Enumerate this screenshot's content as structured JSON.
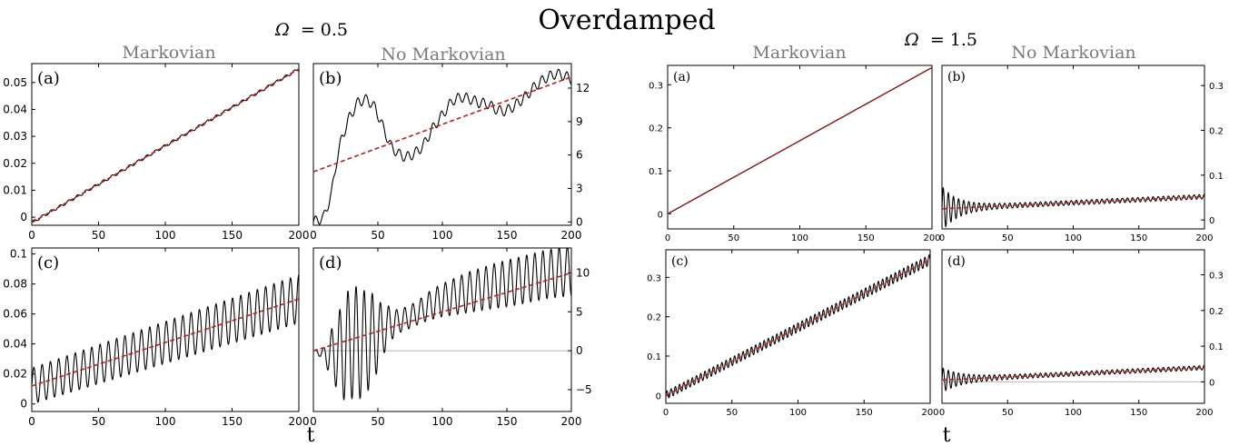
{
  "title": "Overdamped",
  "groups": [
    {
      "omega_symbol": "Ω",
      "omega_value": "= 0.5",
      "col_left": "Markovian",
      "col_right": "No Markovian"
    },
    {
      "omega_symbol": "Ω",
      "omega_value": "= 1.5",
      "col_left": "Markovian",
      "col_right": "No Markovian"
    }
  ],
  "xlabel": "t",
  "chart_data": [
    {
      "id": "omega05-a",
      "label": "(a)",
      "type": "line",
      "xlim": [
        0,
        200
      ],
      "ylim": [
        -0.003,
        0.057
      ],
      "xticks": [
        0,
        50,
        100,
        150,
        200
      ],
      "yticks": [
        0,
        0.01,
        0.02,
        0.03,
        0.04,
        0.05
      ],
      "ytick_labels": [
        "0",
        "0.01",
        "0.02",
        "0.03",
        "0.04",
        "0.05"
      ],
      "yaxis": "left",
      "fit": {
        "color": "#b22222",
        "y0": -0.002,
        "y1": 0.055
      },
      "series": [
        {
          "y0": -0.002,
          "y1": 0.055,
          "amp": 0.0005,
          "period": 6.5
        }
      ]
    },
    {
      "id": "omega05-b",
      "label": "(b)",
      "type": "line",
      "xlim": [
        0,
        200
      ],
      "ylim": [
        -0.3,
        14.2
      ],
      "xticks": [
        0,
        50,
        100,
        150,
        200
      ],
      "yticks": [
        0,
        3,
        6,
        9,
        12
      ],
      "ytick_labels": [
        "0",
        "3",
        "6",
        "9",
        "12"
      ],
      "yaxis": "right",
      "fit": {
        "color": "#b22222",
        "y0": 4.5,
        "y1": 13
      },
      "series": [
        {
          "points": [
            [
              0,
              0
            ],
            [
              8,
              0.4
            ],
            [
              14,
              2.5
            ],
            [
              18,
              5.5
            ],
            [
              22,
              7.5
            ],
            [
              28,
              9.4
            ],
            [
              35,
              10.8
            ],
            [
              42,
              11.0
            ],
            [
              48,
              10.2
            ],
            [
              55,
              8.2
            ],
            [
              60,
              6.8
            ],
            [
              66,
              6.1
            ],
            [
              72,
              5.8
            ],
            [
              78,
              6.1
            ],
            [
              85,
              6.8
            ],
            [
              92,
              8.3
            ],
            [
              100,
              9.6
            ],
            [
              108,
              10.9
            ],
            [
              115,
              11.2
            ],
            [
              122,
              11.0
            ],
            [
              128,
              10.7
            ],
            [
              135,
              10.6
            ],
            [
              140,
              10.2
            ],
            [
              146,
              9.9
            ],
            [
              152,
              10.1
            ],
            [
              158,
              10.6
            ],
            [
              165,
              11.3
            ],
            [
              172,
              12.2
            ],
            [
              180,
              12.9
            ],
            [
              188,
              13.3
            ],
            [
              195,
              13.1
            ],
            [
              200,
              12.8
            ]
          ],
          "amp": 0.45,
          "period": 6.5
        }
      ]
    },
    {
      "id": "omega05-c",
      "label": "(c)",
      "type": "line",
      "xlim": [
        0,
        200
      ],
      "ylim": [
        -0.005,
        0.104
      ],
      "xticks": [
        0,
        50,
        100,
        150,
        200
      ],
      "yticks": [
        0,
        0.02,
        0.04,
        0.06,
        0.08,
        0.1
      ],
      "ytick_labels": [
        "0",
        "0.02",
        "0.04",
        "0.06",
        "0.08",
        "0.1"
      ],
      "yaxis": "left",
      "fit": {
        "color": "#b22222",
        "y0": 0.012,
        "y1": 0.07
      },
      "series": [
        {
          "y0": 0.012,
          "y1": 0.07,
          "amp0": 0.012,
          "amp1": 0.016,
          "period": 6.2
        }
      ]
    },
    {
      "id": "omega05-d",
      "label": "(d)",
      "type": "line",
      "xlim": [
        0,
        200
      ],
      "ylim": [
        -7.8,
        13.2
      ],
      "xticks": [
        0,
        50,
        100,
        150,
        200
      ],
      "yticks": [
        -5,
        0,
        5,
        10
      ],
      "ytick_labels": [
        "−5",
        "0",
        "5",
        "10"
      ],
      "yaxis": "right",
      "hline": 0,
      "fit": {
        "color": "#b22222",
        "y0": 0,
        "y1": 10
      },
      "series": [
        {
          "points": [
            [
              0,
              0
            ],
            [
              10,
              -0.5
            ],
            [
              20,
              -0.2
            ],
            [
              30,
              1.0
            ],
            [
              40,
              1.0
            ],
            [
              50,
              2.0
            ],
            [
              60,
              3.5
            ],
            [
              70,
              4.0
            ],
            [
              80,
              4.8
            ],
            [
              90,
              5.8
            ],
            [
              100,
              6.5
            ],
            [
              120,
              7.5
            ],
            [
              140,
              8.3
            ],
            [
              160,
              9.0
            ],
            [
              180,
              9.8
            ],
            [
              200,
              10.3
            ]
          ],
          "amp_points": [
            [
              0,
              0
            ],
            [
              8,
              0.8
            ],
            [
              15,
              3.5
            ],
            [
              25,
              7.0
            ],
            [
              35,
              7.3
            ],
            [
              45,
              6.0
            ],
            [
              55,
              3.0
            ],
            [
              65,
              1.5
            ],
            [
              80,
              1.5
            ],
            [
              95,
              2.0
            ],
            [
              120,
              2.6
            ],
            [
              150,
              3.0
            ],
            [
              200,
              3.2
            ]
          ],
          "period": 6.3
        }
      ]
    },
    {
      "id": "omega15-a",
      "label": "(a)",
      "type": "line",
      "xlim": [
        0,
        200
      ],
      "ylim": [
        -0.035,
        0.345
      ],
      "xticks": [
        0,
        50,
        100,
        150,
        200
      ],
      "yticks": [
        0,
        0.1,
        0.2,
        0.3
      ],
      "ytick_labels": [
        "0",
        "0.1",
        "0.2",
        "0.3"
      ],
      "yaxis": "left",
      "fit": {
        "color": "#b22222",
        "y0": 0,
        "y1": 0.34
      },
      "series": [
        {
          "y0": 0,
          "y1": 0.34,
          "amp": 0.0,
          "period": 4
        }
      ]
    },
    {
      "id": "omega15-b",
      "label": "(b)",
      "type": "line",
      "xlim": [
        0,
        200
      ],
      "ylim": [
        -0.02,
        0.345
      ],
      "xticks": [
        0,
        50,
        100,
        150,
        200
      ],
      "yticks": [
        0,
        0.1,
        0.2,
        0.3
      ],
      "ytick_labels": [
        "0",
        "0.1",
        "0.2",
        "0.3"
      ],
      "yaxis": "right",
      "fit": {
        "color": "#b22222",
        "y0": 0.025,
        "y1": 0.052
      },
      "series": [
        {
          "y0": 0.025,
          "y1": 0.052,
          "amp0": 0.05,
          "amp_tail": 0.005,
          "decay": 12,
          "period": 3.9
        }
      ]
    },
    {
      "id": "omega15-c",
      "label": "(c)",
      "type": "line",
      "xlim": [
        0,
        200
      ],
      "ylim": [
        -0.02,
        0.37
      ],
      "xticks": [
        0,
        50,
        100,
        150,
        200
      ],
      "yticks": [
        0,
        0.1,
        0.2,
        0.3
      ],
      "ytick_labels": [
        "0",
        "0.1",
        "0.2",
        "0.3"
      ],
      "yaxis": "left",
      "fit": {
        "color": "#b22222",
        "y0": 0,
        "y1": 0.345
      },
      "series": [
        {
          "y0": 0,
          "y1": 0.345,
          "amp0": 0.01,
          "amp1": 0.013,
          "period": 3.2
        }
      ]
    },
    {
      "id": "omega15-d",
      "label": "(d)",
      "type": "line",
      "xlim": [
        0,
        200
      ],
      "ylim": [
        -0.06,
        0.37
      ],
      "xticks": [
        0,
        50,
        100,
        150,
        200
      ],
      "yticks": [
        0,
        0.1,
        0.2,
        0.3
      ],
      "ytick_labels": [
        "0",
        "0.1",
        "0.2",
        "0.3"
      ],
      "yaxis": "right",
      "hline": 0,
      "fit": {
        "color": "#b22222",
        "y0": 0.005,
        "y1": 0.04
      },
      "series": [
        {
          "y0": 0.005,
          "y1": 0.04,
          "amp0": 0.035,
          "amp_tail": 0.006,
          "decay": 14,
          "period": 3.9
        }
      ]
    }
  ]
}
